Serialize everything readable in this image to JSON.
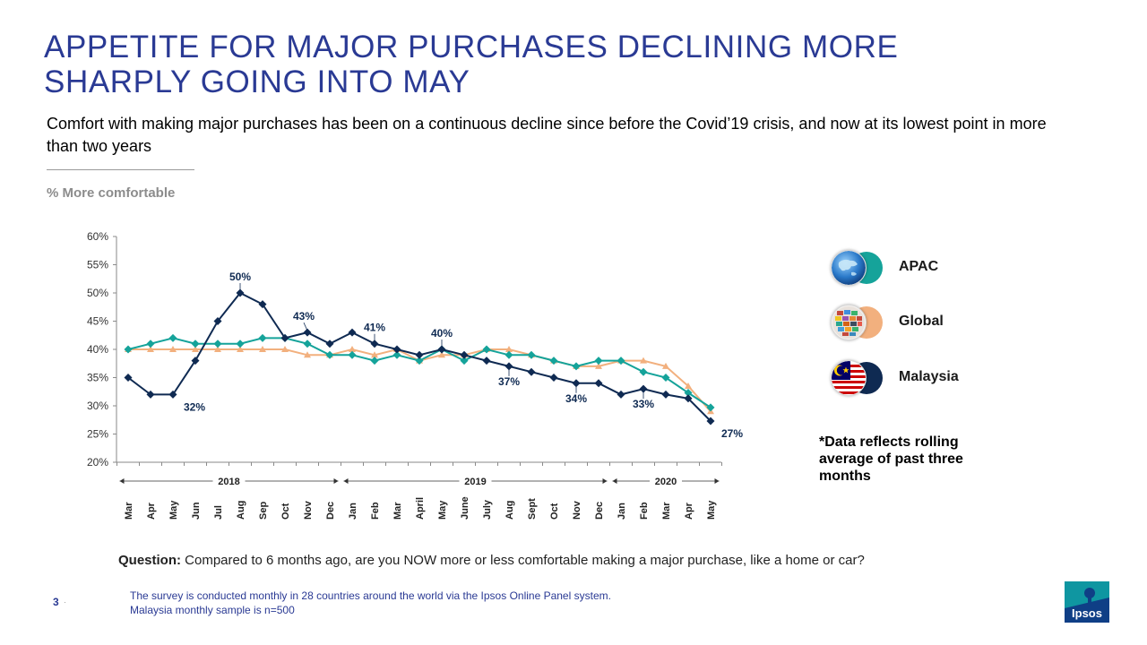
{
  "header": {
    "title_line1": "APPETITE FOR MAJOR PURCHASES DECLINING MORE",
    "title_line2": "SHARPLY GOING INTO MAY",
    "subtitle": "Comfort with making major purchases has been on a continuous decline since before the Covid’19 crisis, and now at its lowest point in more than two years",
    "unit_label": "% More comfortable"
  },
  "chart_data": {
    "type": "line",
    "ylim": [
      20,
      60
    ],
    "yticks": [
      "20%",
      "25%",
      "30%",
      "35%",
      "40%",
      "45%",
      "50%",
      "55%",
      "60%"
    ],
    "categories": [
      "Mar",
      "Apr",
      "May",
      "Jun",
      "Jul",
      "Aug",
      "Sep",
      "Oct",
      "Nov",
      "Dec",
      "Jan",
      "Feb",
      "Mar",
      "April",
      "May",
      "June",
      "July",
      "Aug",
      "Sept",
      "Oct",
      "Nov",
      "Dec",
      "Jan",
      "Feb",
      "Mar",
      "Apr",
      "May"
    ],
    "years": [
      {
        "label": "2018",
        "from": 0,
        "to": 9
      },
      {
        "label": "2019",
        "from": 10,
        "to": 21
      },
      {
        "label": "2020",
        "from": 22,
        "to": 26
      }
    ],
    "series": [
      {
        "name": "Global",
        "color": "#f2b07e",
        "marker": "triangle",
        "values": [
          40,
          40,
          40,
          40,
          40,
          40,
          40,
          40,
          39,
          39,
          40,
          39,
          40,
          38,
          39,
          39,
          40,
          40,
          39,
          38,
          37,
          37,
          38,
          38,
          37,
          33.5,
          29
        ]
      },
      {
        "name": "APAC",
        "color": "#15a39a",
        "marker": "diamond",
        "values": [
          40,
          41,
          42,
          41,
          41,
          41,
          42,
          42,
          41,
          39,
          39,
          38,
          39,
          38,
          40,
          38,
          40,
          39,
          39,
          38,
          37,
          38,
          38,
          36,
          35,
          32.3,
          29.7
        ]
      },
      {
        "name": "Malaysia",
        "color": "#0f2a52",
        "marker": "diamond",
        "values": [
          35,
          32,
          32,
          38,
          45,
          50,
          48,
          42,
          43,
          41,
          43,
          41,
          40,
          39,
          40,
          39,
          38,
          37,
          36,
          35,
          34,
          34,
          32,
          33,
          32,
          31.3,
          27.3
        ]
      }
    ],
    "data_labels": [
      {
        "index": 2,
        "value": 32,
        "text": "32%",
        "anchor": "below-right"
      },
      {
        "index": 5,
        "value": 50,
        "text": "50%",
        "anchor": "above"
      },
      {
        "index": 8,
        "value": 43,
        "text": "43%",
        "anchor": "above-left"
      },
      {
        "index": 11,
        "value": 41,
        "text": "41%",
        "anchor": "above"
      },
      {
        "index": 14,
        "value": 40,
        "text": "40%",
        "anchor": "above"
      },
      {
        "index": 17,
        "value": 37,
        "text": "37%",
        "anchor": "below"
      },
      {
        "index": 20,
        "value": 34,
        "text": "34%",
        "anchor": "below"
      },
      {
        "index": 23,
        "value": 33,
        "text": "33%",
        "anchor": "below"
      },
      {
        "index": 26,
        "value": 27.3,
        "text": "27%",
        "anchor": "below-right"
      }
    ]
  },
  "legend": [
    {
      "label": "APAC",
      "color": "#15a39a",
      "icon": "asia-globe-icon"
    },
    {
      "label": "Global",
      "color": "#f2b07e",
      "icon": "world-flags-globe-icon"
    },
    {
      "label": "Malaysia",
      "color": "#0f2a52",
      "icon": "malaysia-flag-icon"
    }
  ],
  "note": "*Data reflects rolling average of past three months",
  "question": {
    "label": "Question:",
    "text": " Compared to 6 months ago, are you NOW more or less comfortable making a major purchase, like a home or car?"
  },
  "footer": {
    "page_number": "3",
    "line1": "The survey is conducted monthly in 28 countries around the world via the Ipsos Online Panel system.",
    "line2": "Malaysia monthly sample is n=500",
    "logo_text": "Ipsos"
  }
}
